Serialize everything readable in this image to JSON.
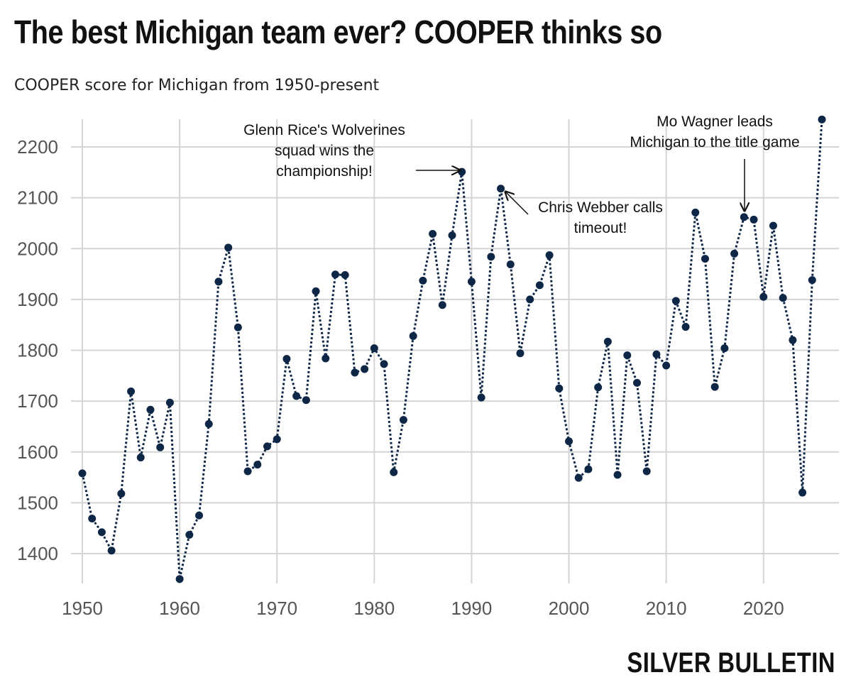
{
  "title": "The best Michigan team ever? COOPER thinks so",
  "subtitle": "COOPER score for Michigan from 1950-present",
  "logo": "SILVER BULLETIN",
  "colors": {
    "line": "#0f2747",
    "grid": "#d4d4d4",
    "text": "#111111",
    "tick": "#555555"
  },
  "chart_data": {
    "type": "line",
    "title": "The best Michigan team ever? COOPER thinks so",
    "subtitle": "COOPER score for Michigan from 1950-present",
    "xlabel": "",
    "ylabel": "",
    "xlim": [
      1949,
      2027
    ],
    "ylim": [
      1350,
      2260
    ],
    "xticks": [
      1950,
      1960,
      1970,
      1980,
      1990,
      2000,
      2010,
      2020
    ],
    "yticks": [
      1400,
      1500,
      1600,
      1700,
      1800,
      1900,
      2000,
      2100,
      2200
    ],
    "grid": true,
    "series": [
      {
        "name": "Michigan",
        "x": [
          1950,
          1951,
          1952,
          1953,
          1954,
          1955,
          1956,
          1957,
          1958,
          1959,
          1960,
          1961,
          1962,
          1963,
          1964,
          1965,
          1966,
          1967,
          1968,
          1969,
          1970,
          1971,
          1972,
          1973,
          1974,
          1975,
          1976,
          1977,
          1978,
          1979,
          1980,
          1981,
          1982,
          1983,
          1984,
          1985,
          1986,
          1987,
          1988,
          1989,
          1990,
          1991,
          1992,
          1993,
          1994,
          1995,
          1996,
          1997,
          1998,
          1999,
          2000,
          2001,
          2002,
          2003,
          2004,
          2005,
          2006,
          2007,
          2008,
          2009,
          2010,
          2011,
          2012,
          2013,
          2014,
          2015,
          2016,
          2017,
          2018,
          2019,
          2020,
          2021,
          2022,
          2023,
          2024,
          2025,
          2026
        ],
        "values": [
          1558,
          1469,
          1442,
          1406,
          1518,
          1719,
          1589,
          1683,
          1609,
          1697,
          1350,
          1437,
          1475,
          1655,
          1935,
          2002,
          1845,
          1562,
          1575,
          1611,
          1625,
          1783,
          1710,
          1702,
          1916,
          1784,
          1949,
          1948,
          1756,
          1763,
          1804,
          1773,
          1560,
          1663,
          1828,
          1937,
          2029,
          1889,
          2026,
          2151,
          1935,
          1707,
          1984,
          2118,
          1969,
          1794,
          1900,
          1928,
          1987,
          1725,
          1621,
          1549,
          1566,
          1727,
          1817,
          1555,
          1790,
          1736,
          1562,
          1792,
          1770,
          1897,
          1846,
          2071,
          1980,
          1728,
          1804,
          1990,
          2062,
          2057,
          1905,
          2045,
          1903,
          1820,
          1520,
          1938,
          2254
        ]
      }
    ],
    "annotations": [
      {
        "lines": [
          "Glenn Rice's Wolverines",
          "squad wins the",
          "championship!"
        ],
        "x": 1989,
        "y": 2151
      },
      {
        "lines": [
          "Chris Webber calls",
          "timeout!"
        ],
        "x": 1993,
        "y": 2118
      },
      {
        "lines": [
          "Mo Wagner leads",
          "Michigan to the title game"
        ],
        "x": 2018,
        "y": 2062
      }
    ]
  }
}
